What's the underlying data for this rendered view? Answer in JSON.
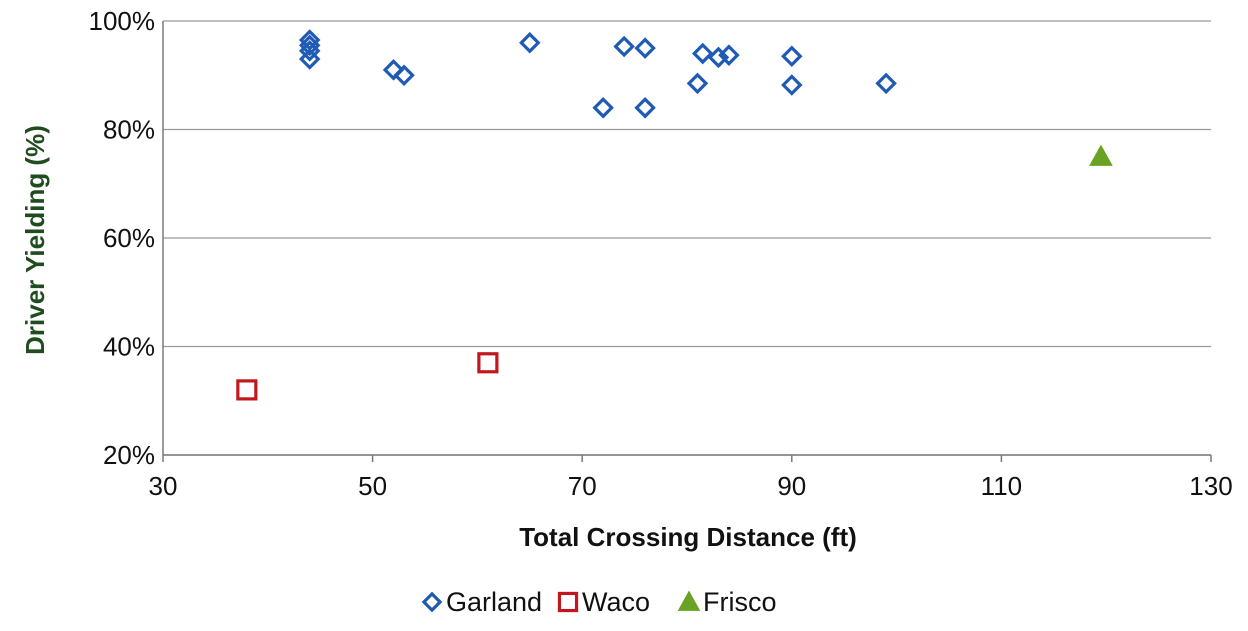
{
  "chart_data": {
    "type": "scatter",
    "xlabel": "Total Crossing Distance (ft)",
    "ylabel": "Driver Yielding (%)",
    "xlim": [
      30,
      130
    ],
    "ylim": [
      20,
      100
    ],
    "x_ticks": [
      "30",
      "50",
      "70",
      "90",
      "110",
      "130"
    ],
    "y_ticks": [
      "20%",
      "40%",
      "60%",
      "80%",
      "100%"
    ],
    "grid": "horizontal",
    "legend_position": "bottom",
    "series": [
      {
        "name": "Garland",
        "marker": "diamond",
        "color": "#1f5bb4",
        "points": [
          [
            44,
            96.5
          ],
          [
            44,
            95.5
          ],
          [
            44,
            94.5
          ],
          [
            44,
            93
          ],
          [
            52,
            91
          ],
          [
            53,
            90
          ],
          [
            65,
            96
          ],
          [
            74,
            95.3
          ],
          [
            76,
            95
          ],
          [
            72,
            84
          ],
          [
            76,
            84
          ],
          [
            81.5,
            94
          ],
          [
            83,
            93.3
          ],
          [
            84,
            93.7
          ],
          [
            81,
            88.5
          ],
          [
            90,
            93.5
          ],
          [
            90,
            88.2
          ],
          [
            99,
            88.5
          ]
        ]
      },
      {
        "name": "Waco",
        "marker": "square",
        "color": "#c0181e",
        "points": [
          [
            38,
            32
          ],
          [
            61,
            37
          ]
        ]
      },
      {
        "name": "Frisco",
        "marker": "triangle",
        "color": "#6aa223",
        "points": [
          [
            119.5,
            75
          ]
        ]
      }
    ]
  }
}
